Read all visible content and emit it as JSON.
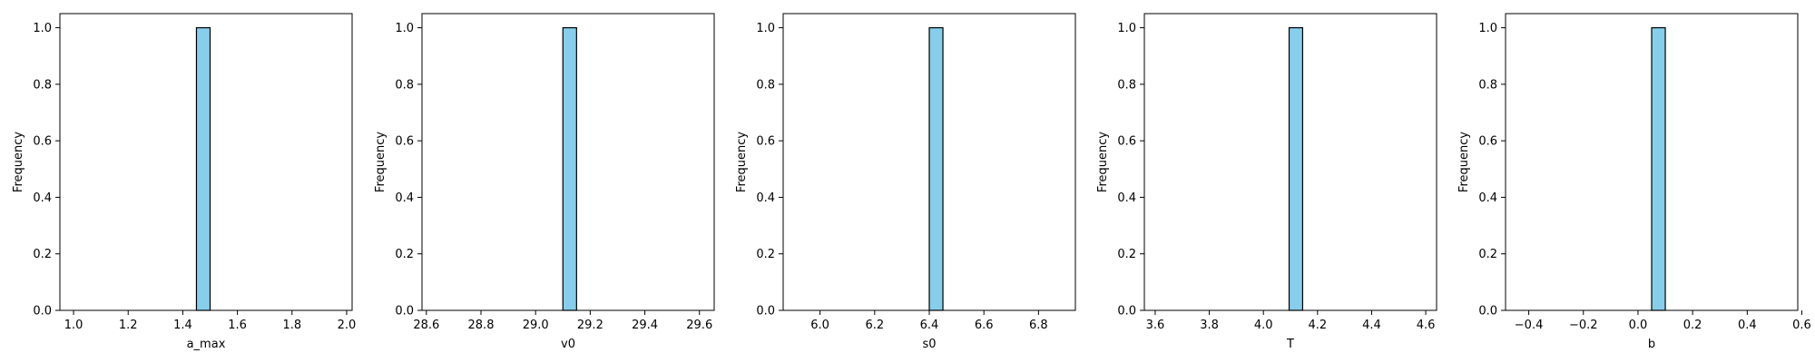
{
  "chart_data": [
    {
      "type": "bar",
      "xlabel": "a_max",
      "ylabel": "Frequency",
      "xlim": [
        0.95,
        2.02
      ],
      "ylim": [
        0,
        1.05
      ],
      "xticks": [
        "1.0",
        "1.2",
        "1.4",
        "1.6",
        "1.8",
        "2.0"
      ],
      "yticks": [
        "0.0",
        "0.2",
        "0.4",
        "0.6",
        "0.8",
        "1.0"
      ],
      "bins": [
        {
          "start": 1.45,
          "end": 1.5,
          "value": 1
        }
      ],
      "color": "#87CEEB",
      "edgecolor": "#000000",
      "grid": false
    },
    {
      "type": "bar",
      "xlabel": "v0",
      "ylabel": "Frequency",
      "xlim": [
        28.584,
        29.654
      ],
      "ylim": [
        0,
        1.05
      ],
      "xticks": [
        "28.6",
        "28.8",
        "29.0",
        "29.2",
        "29.4",
        "29.6"
      ],
      "yticks": [
        "0.0",
        "0.2",
        "0.4",
        "0.6",
        "0.8",
        "1.0"
      ],
      "bins": [
        {
          "start": 29.1,
          "end": 29.15,
          "value": 1
        }
      ],
      "color": "#87CEEB",
      "edgecolor": "#000000",
      "grid": false
    },
    {
      "type": "bar",
      "xlabel": "s0",
      "ylabel": "Frequency",
      "xlim": [
        5.865,
        6.935
      ],
      "ylim": [
        0,
        1.05
      ],
      "xticks": [
        "6.0",
        "6.2",
        "6.4",
        "6.6",
        "6.8"
      ],
      "yticks": [
        "0.0",
        "0.2",
        "0.4",
        "0.6",
        "0.8",
        "1.0"
      ],
      "bins": [
        {
          "start": 6.4,
          "end": 6.45,
          "value": 1
        }
      ],
      "color": "#87CEEB",
      "edgecolor": "#000000",
      "grid": false
    },
    {
      "type": "bar",
      "xlabel": "T",
      "ylabel": "Frequency",
      "xlim": [
        3.56,
        4.64
      ],
      "ylim": [
        0,
        1.05
      ],
      "xticks": [
        "3.6",
        "3.8",
        "4.0",
        "4.2",
        "4.4",
        "4.6"
      ],
      "yticks": [
        "0.0",
        "0.2",
        "0.4",
        "0.6",
        "0.8",
        "1.0"
      ],
      "bins": [
        {
          "start": 4.095,
          "end": 4.145,
          "value": 1
        }
      ],
      "color": "#87CEEB",
      "edgecolor": "#000000",
      "grid": false
    },
    {
      "type": "bar",
      "xlabel": "b",
      "ylabel": "Frequency",
      "xlim": [
        -0.485,
        0.585
      ],
      "ylim": [
        0,
        1.05
      ],
      "xticks": [
        "−0.4",
        "−0.2",
        "0.0",
        "0.2",
        "0.4",
        "0.6"
      ],
      "yticks": [
        "0.0",
        "0.2",
        "0.4",
        "0.6",
        "0.8",
        "1.0"
      ],
      "bins": [
        {
          "start": 0.05,
          "end": 0.1,
          "value": 1
        }
      ],
      "color": "#87CEEB",
      "edgecolor": "#000000",
      "grid": false
    }
  ]
}
